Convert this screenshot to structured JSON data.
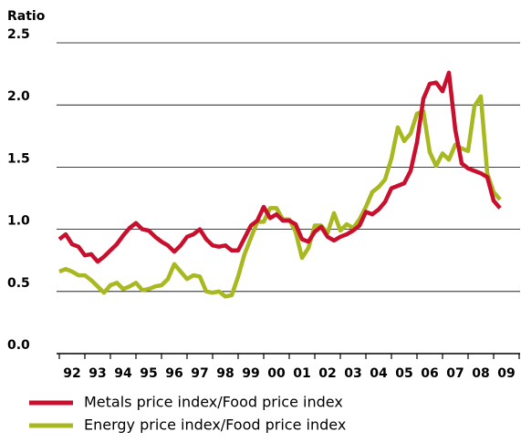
{
  "chart_data": {
    "type": "line",
    "y_label": "Ratio",
    "x": [
      1992,
      1992.25,
      1992.5,
      1992.75,
      1993,
      1993.25,
      1993.5,
      1993.75,
      1994,
      1994.25,
      1994.5,
      1994.75,
      1995,
      1995.25,
      1995.5,
      1995.75,
      1996,
      1996.25,
      1996.5,
      1996.75,
      1997,
      1997.25,
      1997.5,
      1997.75,
      1998,
      1998.25,
      1998.5,
      1998.75,
      1999,
      1999.25,
      1999.5,
      1999.75,
      2000,
      2000.25,
      2000.5,
      2000.75,
      2001,
      2001.25,
      2001.5,
      2001.75,
      2002,
      2002.25,
      2002.5,
      2002.75,
      2003,
      2003.25,
      2003.5,
      2003.75,
      2004,
      2004.25,
      2004.5,
      2004.75,
      2005,
      2005.25,
      2005.5,
      2005.75,
      2006,
      2006.25,
      2006.5,
      2006.75,
      2007,
      2007.25,
      2007.5,
      2007.75,
      2008,
      2008.25,
      2008.5,
      2008.75,
      2009,
      2009.25
    ],
    "series": [
      {
        "name": "Metals price index/Food price index",
        "color": "#c8102e",
        "values": [
          0.92,
          0.96,
          0.88,
          0.86,
          0.79,
          0.8,
          0.74,
          0.78,
          0.83,
          0.88,
          0.95,
          1.01,
          1.05,
          1.0,
          0.99,
          0.94,
          0.9,
          0.87,
          0.82,
          0.87,
          0.94,
          0.96,
          1.0,
          0.92,
          0.87,
          0.86,
          0.87,
          0.83,
          0.83,
          0.93,
          1.03,
          1.07,
          1.18,
          1.09,
          1.12,
          1.07,
          1.07,
          1.04,
          0.92,
          0.9,
          0.98,
          1.02,
          0.94,
          0.91,
          0.94,
          0.96,
          0.99,
          1.03,
          1.14,
          1.12,
          1.16,
          1.22,
          1.33,
          1.35,
          1.37,
          1.47,
          1.7,
          2.05,
          2.17,
          2.18,
          2.11,
          2.26,
          1.8,
          1.53,
          1.49,
          1.47,
          1.45,
          1.42,
          1.23,
          1.17
        ]
      },
      {
        "name": "Energy price index/Food price index",
        "color": "#a8b820",
        "values": [
          0.66,
          0.68,
          0.66,
          0.63,
          0.63,
          0.59,
          0.54,
          0.49,
          0.55,
          0.57,
          0.52,
          0.54,
          0.57,
          0.51,
          0.52,
          0.54,
          0.55,
          0.6,
          0.72,
          0.66,
          0.6,
          0.63,
          0.62,
          0.5,
          0.49,
          0.5,
          0.46,
          0.47,
          0.62,
          0.8,
          0.93,
          1.06,
          1.06,
          1.17,
          1.17,
          1.08,
          1.08,
          0.98,
          0.77,
          0.85,
          1.03,
          1.03,
          0.97,
          1.13,
          0.99,
          1.04,
          1.01,
          1.08,
          1.18,
          1.3,
          1.34,
          1.4,
          1.57,
          1.82,
          1.71,
          1.77,
          1.93,
          1.95,
          1.62,
          1.51,
          1.61,
          1.56,
          1.68,
          1.65,
          1.63,
          1.99,
          2.07,
          1.45,
          1.3,
          1.24
        ]
      }
    ],
    "xlim": [
      1992,
      2010
    ],
    "xticks": [
      {
        "value": 1992,
        "label": "92"
      },
      {
        "value": 1993,
        "label": "93"
      },
      {
        "value": 1994,
        "label": "94"
      },
      {
        "value": 1995,
        "label": "95"
      },
      {
        "value": 1996,
        "label": "96"
      },
      {
        "value": 1997,
        "label": "97"
      },
      {
        "value": 1998,
        "label": "98"
      },
      {
        "value": 1999,
        "label": "99"
      },
      {
        "value": 2000,
        "label": "00"
      },
      {
        "value": 2001,
        "label": "01"
      },
      {
        "value": 2002,
        "label": "02"
      },
      {
        "value": 2003,
        "label": "03"
      },
      {
        "value": 2004,
        "label": "04"
      },
      {
        "value": 2005,
        "label": "05"
      },
      {
        "value": 2006,
        "label": "06"
      },
      {
        "value": 2007,
        "label": "07"
      },
      {
        "value": 2008,
        "label": "08"
      },
      {
        "value": 2009,
        "label": "09"
      }
    ],
    "ylim": [
      0,
      2.5
    ],
    "yticks": [
      {
        "value": 0,
        "label": "0.0"
      },
      {
        "value": 0.5,
        "label": "0.5"
      },
      {
        "value": 1,
        "label": "1.0"
      },
      {
        "value": 1.5,
        "label": "1.5"
      },
      {
        "value": 2,
        "label": "2.0"
      },
      {
        "value": 2.5,
        "label": "2.5"
      }
    ],
    "grid": true
  }
}
